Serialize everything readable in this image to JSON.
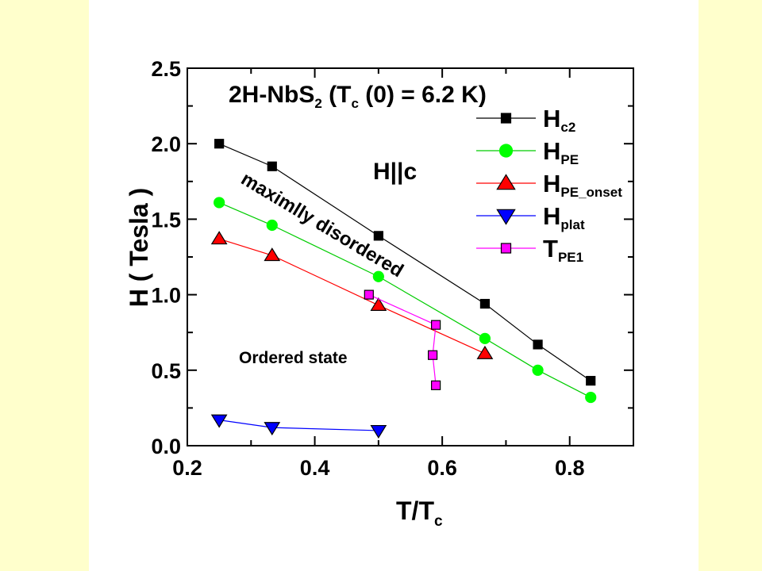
{
  "colors": {
    "side_panel": "#FFFFCC",
    "background": "#FFFFFF",
    "axis": "#000000"
  },
  "chart_data": {
    "type": "line",
    "title": "",
    "title_parts": {
      "main": "2H-NbS",
      "sub1": "2",
      "mid": " (T",
      "sub2": "c",
      "end": " (0) = 6.2 K)"
    },
    "xlabel": "T/T",
    "xlabel_sub": "c",
    "ylabel": "H ( Tesla )",
    "xlim": [
      0.2,
      0.9
    ],
    "ylim": [
      0.0,
      2.5
    ],
    "xticks": [
      "0.2",
      "0.4",
      "0.6",
      "0.8"
    ],
    "yticks": [
      "0.0",
      "0.5",
      "1.0",
      "1.5",
      "2.0",
      "2.5"
    ],
    "grid": false,
    "legend_position": "top-right",
    "annotations": {
      "field_direction": "H||c",
      "disordered_region": "maximlly disordered",
      "ordered_region": "Ordered state"
    },
    "series": [
      {
        "name": "H",
        "sub": "c2",
        "marker": "square",
        "color": "#000000",
        "line_color": "#000000",
        "x": [
          0.25,
          0.333,
          0.5,
          0.667,
          0.75,
          0.833
        ],
        "y": [
          2.0,
          1.85,
          1.39,
          0.94,
          0.67,
          0.43
        ]
      },
      {
        "name": "H",
        "sub": "PE",
        "marker": "circle",
        "color": "#00FF00",
        "line_color": "#00CC00",
        "x": [
          0.25,
          0.333,
          0.5,
          0.667,
          0.75,
          0.833
        ],
        "y": [
          1.61,
          1.46,
          1.12,
          0.71,
          0.5,
          0.32
        ]
      },
      {
        "name": "H",
        "sub": "PE_onset",
        "marker": "triangle-up",
        "color": "#FF0000",
        "line_color": "#FF0000",
        "x": [
          0.25,
          0.333,
          0.5,
          0.667
        ],
        "y": [
          1.37,
          1.26,
          0.93,
          0.61
        ]
      },
      {
        "name": "H",
        "sub": "plat",
        "marker": "triangle-down",
        "color": "#0000FF",
        "line_color": "#0000FF",
        "x": [
          0.25,
          0.333,
          0.5
        ],
        "y": [
          0.17,
          0.12,
          0.1
        ]
      },
      {
        "name": "T",
        "sub": "PE1",
        "marker": "square",
        "color": "#FF00FF",
        "line_color": "#FF00FF",
        "x": [
          0.485,
          0.59,
          0.585,
          0.59
        ],
        "y": [
          1.0,
          0.8,
          0.6,
          0.4
        ]
      }
    ]
  }
}
